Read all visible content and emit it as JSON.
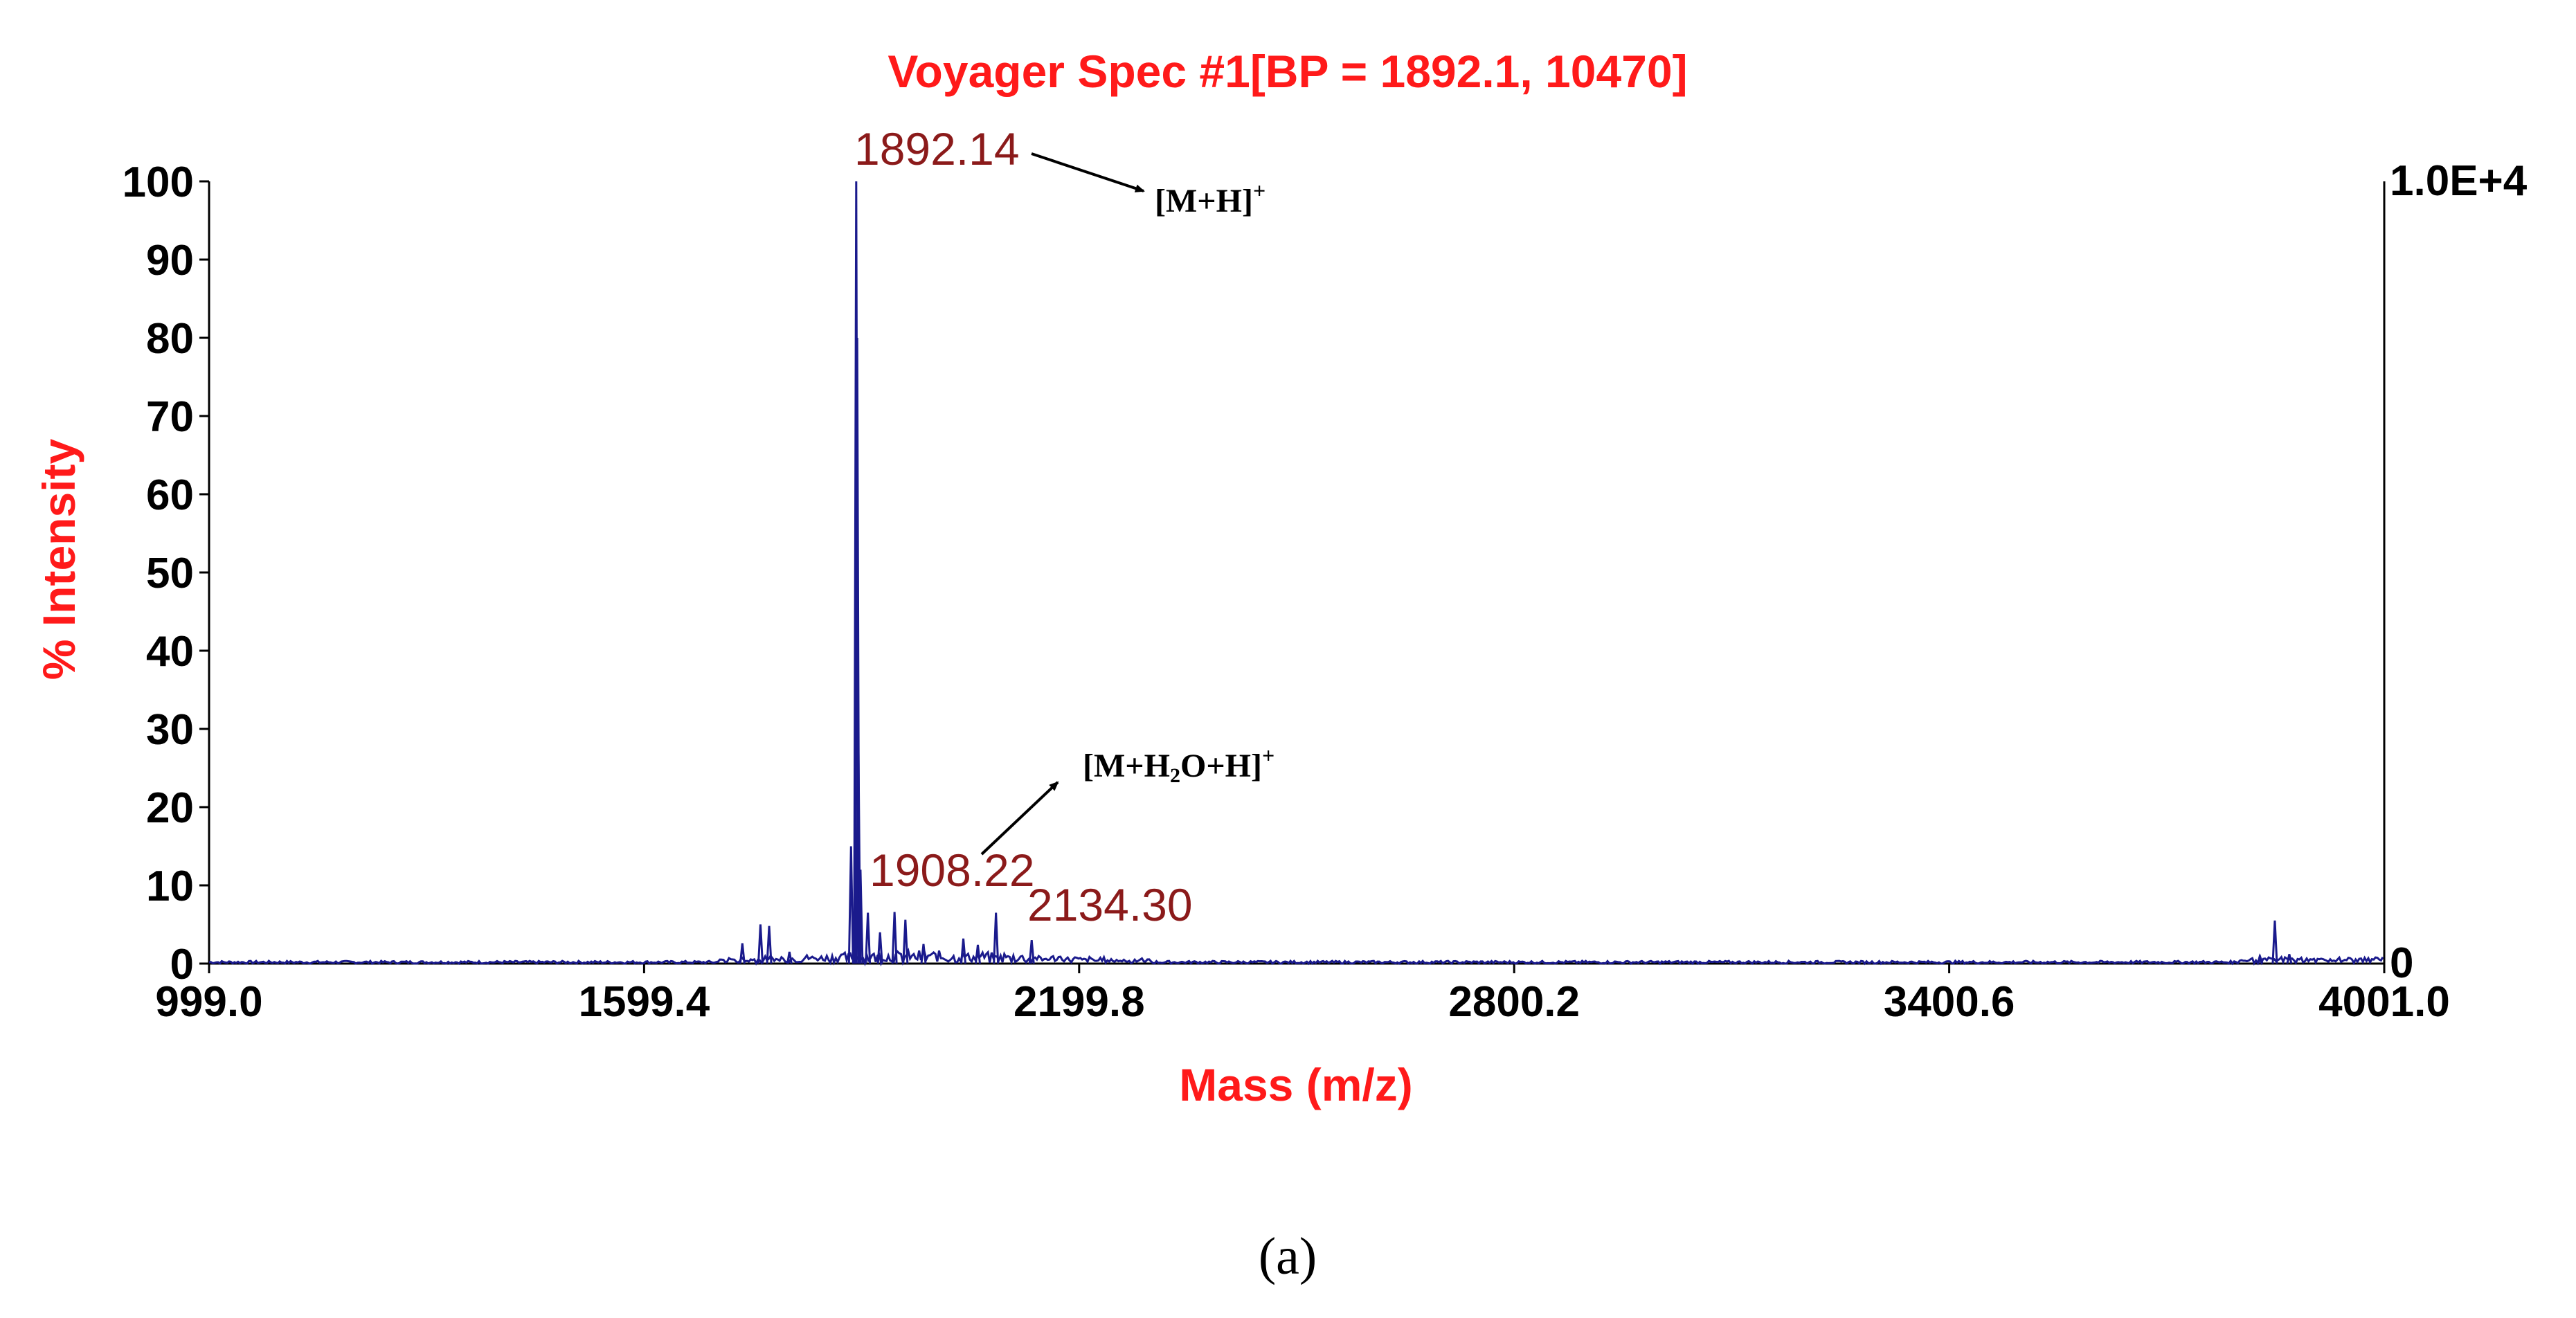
{
  "chart_data": {
    "type": "line",
    "title": "Voyager Spec #1[BP = 1892.1, 10470]",
    "xlabel": "Mass (m/z)",
    "ylabel": "% Intensity",
    "xlim": [
      999.0,
      4001.0
    ],
    "ylim": [
      0,
      100
    ],
    "x_ticks": [
      "999.0",
      "1599.4",
      "2199.8",
      "2800.2",
      "3400.6",
      "4001.0"
    ],
    "y_ticks": [
      "0",
      "10",
      "20",
      "30",
      "40",
      "50",
      "60",
      "70",
      "80",
      "90",
      "100"
    ],
    "right_axis": {
      "top_label": "1.0E+4",
      "bottom_label": "0"
    },
    "grid": false,
    "line_color": "#1a1a8c",
    "title_color": "#ff1a1a",
    "peak_label_color": "#8b1a1a",
    "series": [
      {
        "peaks": [
          {
            "x": 1735,
            "y": 2.6
          },
          {
            "x": 1760,
            "y": 5.0
          },
          {
            "x": 1772,
            "y": 4.8
          },
          {
            "x": 1800,
            "y": 1.5
          },
          {
            "x": 1885,
            "y": 15.0
          },
          {
            "x": 1892.14,
            "y": 100
          },
          {
            "x": 1893.5,
            "y": 80
          },
          {
            "x": 1895,
            "y": 29
          },
          {
            "x": 1898,
            "y": 12
          },
          {
            "x": 1908.22,
            "y": 6.5
          },
          {
            "x": 1925,
            "y": 4.0
          },
          {
            "x": 1945,
            "y": 6.6
          },
          {
            "x": 1960,
            "y": 5.6
          },
          {
            "x": 1985,
            "y": 2.5
          },
          {
            "x": 2040,
            "y": 3.2
          },
          {
            "x": 2060,
            "y": 2.4
          },
          {
            "x": 2085,
            "y": 6.5
          },
          {
            "x": 2134.3,
            "y": 3.0
          },
          {
            "x": 3830,
            "y": 0.8
          },
          {
            "x": 3850,
            "y": 5.5
          },
          {
            "x": 3870,
            "y": 1.2
          }
        ]
      }
    ],
    "peak_labels": [
      {
        "text": "1892.14",
        "x": 1892.14
      },
      {
        "text": "1908.22",
        "x": 1908.22
      },
      {
        "text": "2134.30",
        "x": 2134.3
      }
    ],
    "annotations": [
      {
        "main": "[M+H]",
        "sup": "+"
      },
      {
        "pre": "[M+H",
        "sub": "2",
        "post": "O+H]",
        "sup": "+"
      }
    ]
  },
  "caption": "(a)"
}
